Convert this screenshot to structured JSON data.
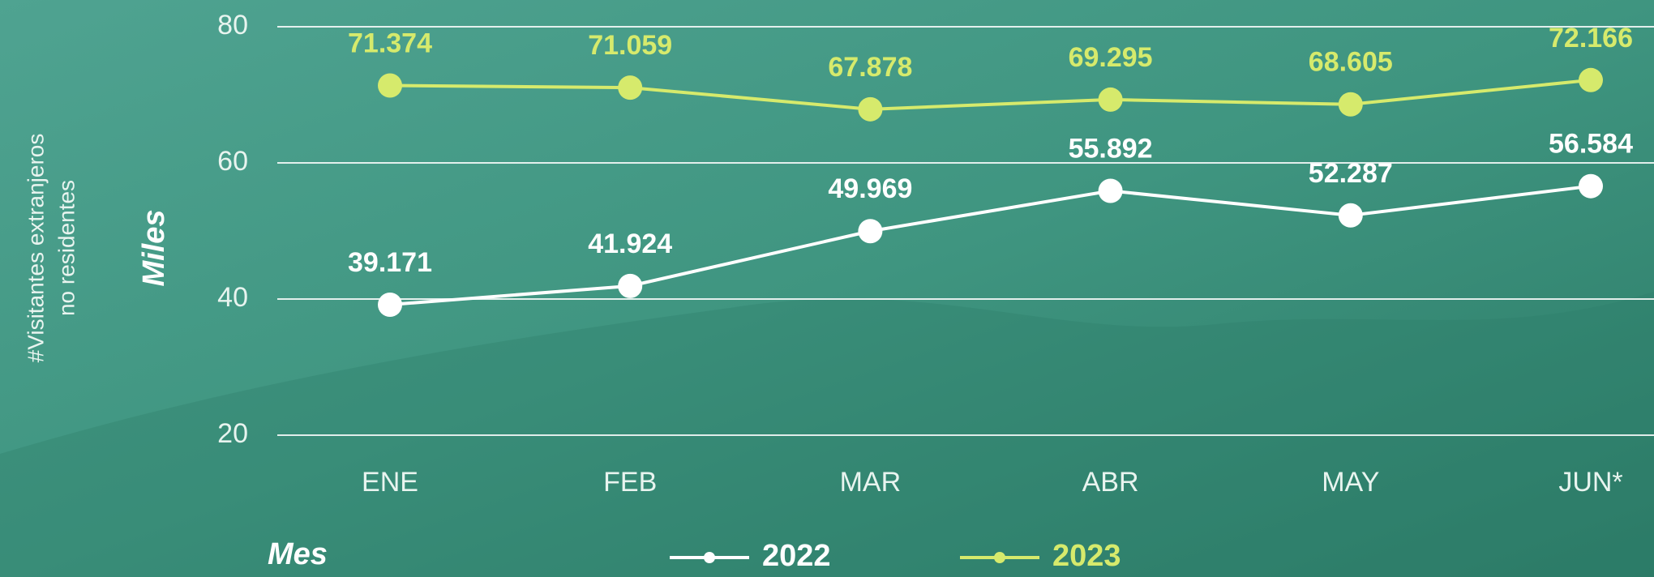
{
  "chart_data": {
    "type": "line",
    "y_label_side": [
      "#Visitantes extranjeros",
      "no residentes"
    ],
    "y_label": "Miles",
    "x_label": "Mes",
    "categories": [
      "ENE",
      "FEB",
      "MAR",
      "ABR",
      "MAY",
      "JUN*"
    ],
    "series": [
      {
        "name": "2022",
        "color": "#ffffff",
        "values": [
          39.171,
          41.924,
          49.969,
          55.892,
          52.287,
          56.584
        ]
      },
      {
        "name": "2023",
        "color": "#d6ea6c",
        "values": [
          71.374,
          71.059,
          67.878,
          69.295,
          68.605,
          72.166
        ]
      }
    ],
    "ylim": [
      20,
      80
    ],
    "yticks": [
      20,
      40,
      60,
      80
    ],
    "grid": true
  }
}
